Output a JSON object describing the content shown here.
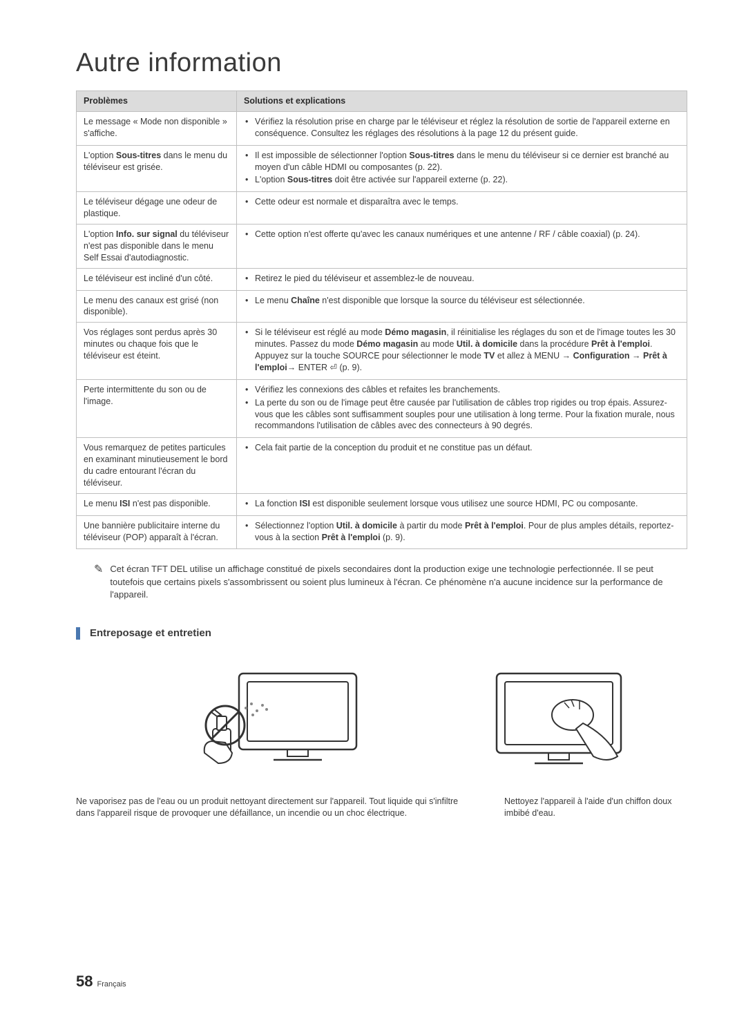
{
  "title": "Autre information",
  "table": {
    "headers": [
      "Problèmes",
      "Solutions et explications"
    ],
    "rows": [
      {
        "problem": "Le message « Mode non disponible » s'affiche.",
        "solutions": [
          "Vérifiez la résolution prise en charge par le téléviseur et réglez la résolution de sortie de l'appareil externe en conséquence. Consultez les réglages des résolutions à la page 12 du présent guide."
        ]
      },
      {
        "problem_html": "L'option <b>Sous-titres</b> dans le menu du téléviseur est grisée.",
        "solutions_html": [
          "Il est impossible de sélectionner l'option <b>Sous-titres</b> dans le menu du téléviseur si ce dernier est branché au moyen d'un câble HDMI ou composantes (p. 22).",
          "L'option <b>Sous-titres</b> doit être activée sur l'appareil externe (p. 22)."
        ]
      },
      {
        "problem": "Le téléviseur dégage une odeur de plastique.",
        "solutions": [
          "Cette odeur est normale et disparaîtra avec le temps."
        ]
      },
      {
        "problem_html": "L'option <b>Info. sur signal</b> du téléviseur n'est pas disponible dans le menu Self Essai d'autodiagnostic.",
        "solutions": [
          "Cette option n'est offerte qu'avec les canaux numériques et une antenne / RF / câble coaxial) (p. 24)."
        ]
      },
      {
        "problem": "Le téléviseur est incliné d'un côté.",
        "solutions": [
          "Retirez le pied du téléviseur et assemblez-le de nouveau."
        ]
      },
      {
        "problem": "Le menu des canaux est grisé (non disponible).",
        "solutions_html": [
          "Le menu <b>Chaîne</b> n'est disponible que lorsque la source du téléviseur est sélectionnée."
        ]
      },
      {
        "problem": "Vos réglages sont perdus après 30 minutes ou chaque fois que le téléviseur est éteint.",
        "solutions_html": [
          "Si le téléviseur est réglé au mode <b>Démo magasin</b>, il réinitialise les réglages du son et de l'image toutes les 30 minutes. Passez du mode <b>Démo magasin</b> au mode <b>Util. à domicile</b> dans la procédure <b>Prêt à l'emploi</b>. Appuyez sur la touche SOURCE pour sélectionner le mode <b>TV</b> et allez à MENU → <b>Configuration</b> → <b>Prêt à l'emploi</b>→ ENTER ⏎ (p. 9)."
        ]
      },
      {
        "problem": "Perte intermittente du son ou de l'image.",
        "solutions": [
          "Vérifiez les connexions des câbles et refaites les branchements.",
          "La perte du son ou de l'image peut être causée par l'utilisation de câbles trop rigides ou trop épais. Assurez-vous que les câbles sont suffisamment souples pour une utilisation à long terme. Pour la fixation murale, nous recommandons l'utilisation de câbles avec des connecteurs à 90 degrés."
        ]
      },
      {
        "problem": "Vous remarquez de petites particules en examinant minutieusement le bord du cadre entourant l'écran du téléviseur.",
        "solutions": [
          "Cela fait partie de la conception du produit et ne constitue pas un défaut."
        ]
      },
      {
        "problem_html": "Le menu <b>ISI</b> n'est pas disponible.",
        "solutions_html": [
          "La fonction <b>ISI</b> est disponible seulement lorsque vous utilisez une source HDMI, PC ou composante."
        ]
      },
      {
        "problem": "Une bannière publicitaire interne du téléviseur (POP) apparaît à l'écran.",
        "solutions_html": [
          "Sélectionnez l'option <b>Util. à domicile</b> à partir du mode <b>Prêt à l'emploi</b>. Pour de plus amples détails, reportez-vous à la section <b>Prêt à l'emploi</b> (p. 9)."
        ]
      }
    ]
  },
  "note_text": "Cet écran TFT DEL utilise un affichage constitué de pixels secondaires dont la production exige une technologie perfectionnée. Il se peut toutefois que certains pixels s'assombrissent ou soient plus lumineux à l'écran. Ce phénomène n'a aucune incidence sur la performance de l'appareil.",
  "section_heading": "Entreposage et entretien",
  "captions": {
    "left": "Ne vaporisez pas de l'eau ou un produit nettoyant directement sur l'appareil. Tout liquide qui s'infiltre dans l'appareil risque de provoquer une défaillance, un incendie ou un choc électrique.",
    "right": "Nettoyez l'appareil à l'aide d'un chiffon doux imbibé d'eau."
  },
  "footer": {
    "page": "58",
    "lang": "Français"
  },
  "colors": {
    "accent_bar": "#4a78b0",
    "table_header_bg": "#dcdcdc",
    "border": "#bfbfbf",
    "text": "#3a3a3a"
  }
}
